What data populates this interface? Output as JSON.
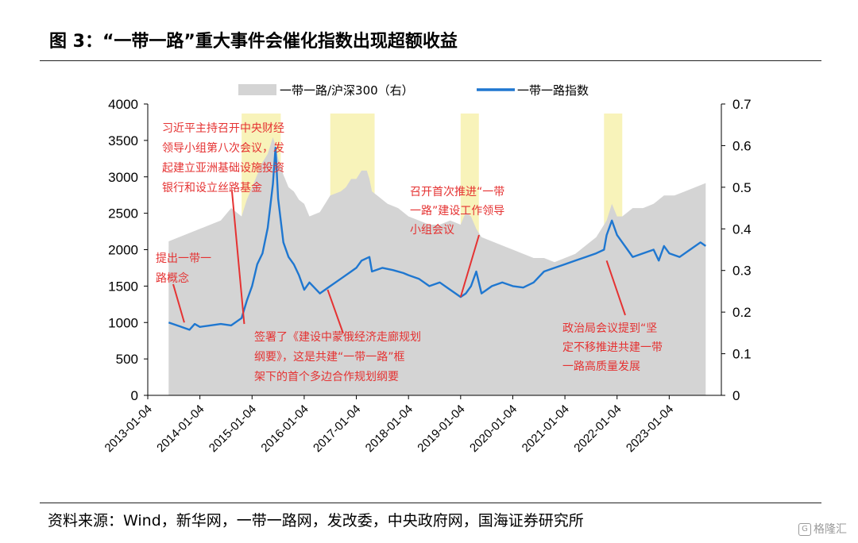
{
  "figure": {
    "title": "图 3：“一带一路”重大事件会催化指数出现超额收益",
    "source": "资料来源：Wind，新华网，一带一路网，发改委，中央政府网，国海证券研究所",
    "watermark": "格隆汇"
  },
  "chart_data": {
    "type": "line",
    "title": "",
    "xlabel": "",
    "ylabel": "",
    "ylim": [
      0,
      4000
    ],
    "y2lim": [
      0,
      0.7
    ],
    "y_ticks": [
      0,
      500,
      1000,
      1500,
      2000,
      2500,
      3000,
      3500,
      4000
    ],
    "y2_ticks": [
      0,
      0.1,
      0.2,
      0.3,
      0.4,
      0.5,
      0.6,
      0.7
    ],
    "x_tick_labels": [
      "2013-01-04",
      "2014-01-04",
      "2015-01-04",
      "2016-01-04",
      "2017-01-04",
      "2018-01-04",
      "2019-01-04",
      "2020-01-04",
      "2021-01-04",
      "2022-01-04",
      "2023-01-04"
    ],
    "legend_position": "top",
    "grid": false,
    "colors": {
      "index_line": "#1f77d0",
      "ratio_area": "#d4d4d4",
      "highlight": "#f7f2b4",
      "annotation": "#e53232"
    },
    "series": [
      {
        "name": "一带一路/沪深300（右）",
        "kind": "area",
        "axis": "right",
        "x": [
          2013.4,
          2013.6,
          2013.8,
          2014.0,
          2014.2,
          2014.4,
          2014.6,
          2014.8,
          2014.9,
          2015.0,
          2015.1,
          2015.2,
          2015.3,
          2015.4,
          2015.45,
          2015.5,
          2015.6,
          2015.7,
          2015.8,
          2015.9,
          2016.0,
          2016.1,
          2016.3,
          2016.5,
          2016.7,
          2016.8,
          2016.9,
          2017.0,
          2017.1,
          2017.2,
          2017.25,
          2017.3,
          2017.4,
          2017.6,
          2017.8,
          2018.0,
          2018.2,
          2018.4,
          2018.6,
          2018.8,
          2019.0,
          2019.1,
          2019.2,
          2019.3,
          2019.4,
          2019.6,
          2019.8,
          2020.0,
          2020.2,
          2020.4,
          2020.6,
          2020.8,
          2021.0,
          2021.2,
          2021.4,
          2021.6,
          2021.8,
          2021.9,
          2022.0,
          2022.1,
          2022.3,
          2022.5,
          2022.7,
          2022.9,
          2023.1,
          2023.3,
          2023.5,
          2023.7
        ],
        "values": [
          0.37,
          0.38,
          0.39,
          0.4,
          0.41,
          0.42,
          0.45,
          0.43,
          0.47,
          0.5,
          0.53,
          0.56,
          0.58,
          0.62,
          0.6,
          0.57,
          0.53,
          0.5,
          0.49,
          0.47,
          0.46,
          0.43,
          0.44,
          0.48,
          0.49,
          0.5,
          0.52,
          0.52,
          0.54,
          0.54,
          0.52,
          0.49,
          0.48,
          0.46,
          0.45,
          0.43,
          0.42,
          0.41,
          0.41,
          0.42,
          0.41,
          0.44,
          0.43,
          0.4,
          0.38,
          0.37,
          0.36,
          0.35,
          0.34,
          0.33,
          0.33,
          0.32,
          0.33,
          0.34,
          0.36,
          0.38,
          0.42,
          0.46,
          0.43,
          0.43,
          0.45,
          0.45,
          0.46,
          0.48,
          0.48,
          0.49,
          0.5,
          0.51
        ]
      },
      {
        "name": "一带一路指数",
        "kind": "line",
        "axis": "left",
        "x": [
          2013.4,
          2013.6,
          2013.8,
          2013.9,
          2014.0,
          2014.2,
          2014.4,
          2014.6,
          2014.8,
          2014.9,
          2015.0,
          2015.1,
          2015.2,
          2015.3,
          2015.4,
          2015.45,
          2015.5,
          2015.6,
          2015.7,
          2015.8,
          2015.9,
          2016.0,
          2016.1,
          2016.3,
          2016.5,
          2016.7,
          2016.9,
          2017.0,
          2017.1,
          2017.25,
          2017.3,
          2017.5,
          2017.7,
          2017.9,
          2018.0,
          2018.2,
          2018.4,
          2018.6,
          2018.8,
          2019.0,
          2019.1,
          2019.2,
          2019.3,
          2019.4,
          2019.6,
          2019.8,
          2020.0,
          2020.2,
          2020.4,
          2020.6,
          2020.8,
          2021.0,
          2021.2,
          2021.4,
          2021.6,
          2021.75,
          2021.8,
          2021.9,
          2022.0,
          2022.1,
          2022.2,
          2022.3,
          2022.5,
          2022.7,
          2022.8,
          2022.9,
          2023.0,
          2023.2,
          2023.4,
          2023.6,
          2023.7
        ],
        "values": [
          1000,
          950,
          900,
          980,
          940,
          960,
          980,
          960,
          1060,
          1300,
          1500,
          1800,
          1950,
          2300,
          2900,
          3400,
          2700,
          2100,
          1900,
          1800,
          1650,
          1450,
          1550,
          1400,
          1500,
          1600,
          1700,
          1750,
          1850,
          1900,
          1700,
          1750,
          1720,
          1680,
          1650,
          1600,
          1500,
          1550,
          1450,
          1350,
          1400,
          1500,
          1700,
          1400,
          1500,
          1550,
          1500,
          1480,
          1550,
          1700,
          1750,
          1800,
          1850,
          1900,
          1950,
          2000,
          2200,
          2400,
          2200,
          2100,
          2000,
          1900,
          1950,
          2000,
          1850,
          2050,
          1950,
          1900,
          2000,
          2100,
          2050
        ]
      }
    ],
    "highlight_periods": [
      [
        2014.8,
        2015.55
      ],
      [
        2016.5,
        2017.35
      ],
      [
        2019.0,
        2019.35
      ],
      [
        2021.75,
        2022.1
      ]
    ],
    "annotations": [
      {
        "lines": [
          "习近平主持召开中央财经",
          "领导小组第八次会议，发",
          "起建立亚洲基础设施投资",
          "银行和设立丝路基金"
        ],
        "target": [
          2014.85,
          980
        ]
      },
      {
        "lines": [
          "提出一带一",
          "路概念"
        ],
        "target": [
          2013.7,
          1000
        ]
      },
      {
        "lines": [
          "签署了《建设中蒙俄经济走廊规划",
          "纲要》，这是共建“一带一路”框",
          "架下的首个多边合作规划纲要"
        ],
        "target": [
          2016.45,
          1450
        ]
      },
      {
        "lines": [
          "召开首次推进“一带",
          "一路”建设工作领导",
          "小组会议"
        ],
        "target": [
          2019.0,
          1350
        ]
      },
      {
        "lines": [
          "政治局会议提到“坚",
          "定不移推进共建一带",
          "一路高质量发展"
        ],
        "target": [
          2021.8,
          1850
        ]
      }
    ]
  }
}
